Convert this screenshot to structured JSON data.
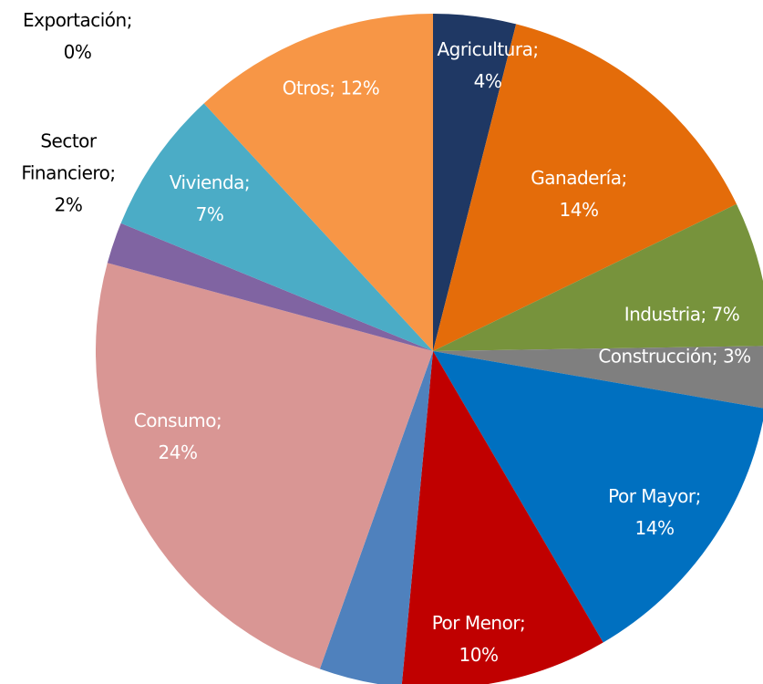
{
  "chart_data": {
    "type": "pie",
    "categories": [
      "Agricultura;",
      "Ganadería;",
      "Industria;",
      "Construcción;",
      "Por Mayor;",
      "Por Menor;",
      null,
      "Consumo;",
      "Sector Financiero;",
      "Vivienda;",
      "Otros;",
      "Exportación;"
    ],
    "values": [
      4,
      14,
      7,
      3,
      14,
      10,
      4,
      24,
      2,
      7,
      12,
      0
    ],
    "value_labels": [
      "4%",
      "14%",
      "7%",
      "3%",
      "14%",
      "10%",
      null,
      "24%",
      "2%",
      "7%",
      "12%",
      "0%"
    ],
    "colors": [
      "#1f3864",
      "#e46c0a",
      "#77933c",
      "#7f7f7f",
      "#0070c0",
      "#c00000",
      "#4f81bd",
      "#d99694",
      "#8064a2",
      "#4bacc6",
      "#f79646",
      "#000000"
    ],
    "label_colors": [
      "#ffffff",
      "#ffffff",
      "#ffffff",
      "#ffffff",
      "#ffffff",
      "#ffffff",
      null,
      "#ffffff",
      "#000000",
      "#ffffff",
      "#ffffff",
      "#000000"
    ]
  }
}
